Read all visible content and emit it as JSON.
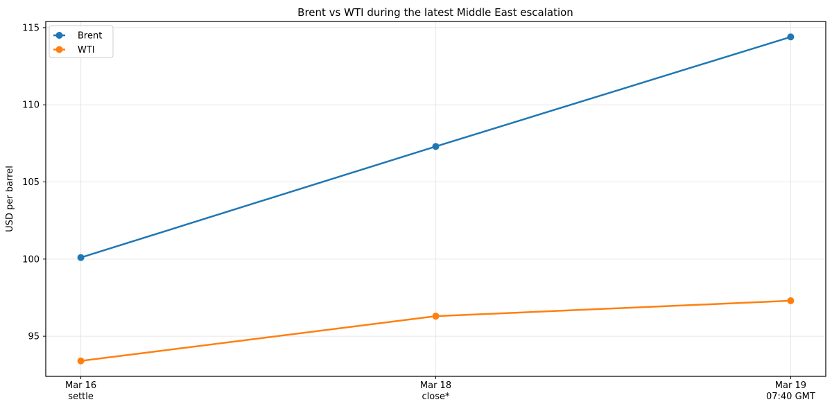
{
  "chart_data": {
    "type": "line",
    "title": "Brent vs WTI during the latest Middle East escalation",
    "xlabel": "",
    "ylabel": "USD per barrel",
    "categories": [
      "Mar 16\nsettle",
      "Mar 18\nclose*",
      "Mar 19\n07:40 GMT"
    ],
    "series": [
      {
        "name": "Brent",
        "color": "#1f77b4",
        "values": [
          100.1,
          107.3,
          114.4
        ]
      },
      {
        "name": "WTI",
        "color": "#ff7f0e",
        "values": [
          93.4,
          96.3,
          97.3
        ]
      }
    ],
    "ylim": [
      92.4,
      115.4
    ],
    "yticks": [
      95,
      100,
      105,
      110,
      115
    ],
    "grid": true,
    "legend_position": "upper left",
    "colors": {
      "background": "#ffffff",
      "grid": "#e7e7e7",
      "spine": "#000000",
      "tick": "#000000",
      "legend_border": "#cccccc",
      "legend_fill": "#ffffff"
    }
  }
}
